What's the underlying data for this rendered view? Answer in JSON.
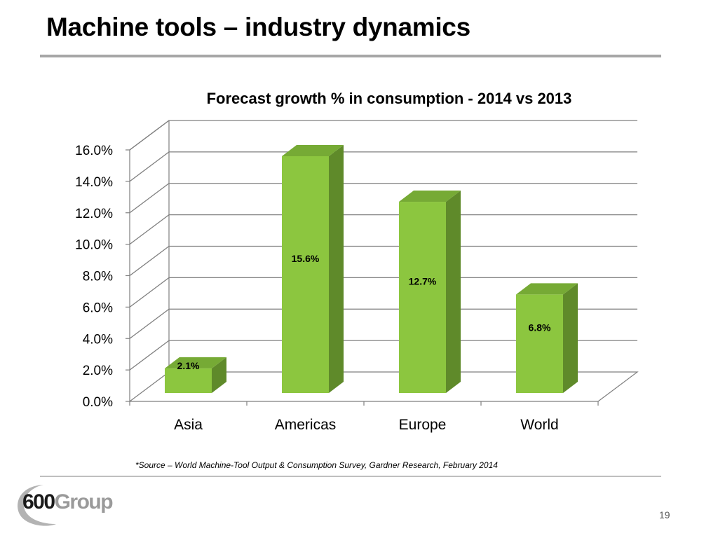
{
  "slide": {
    "title": "Machine tools – industry dynamics",
    "source_note": "*Source – World Machine-Tool Output & Consumption Survey, Gardner Research, February 2014",
    "page_number": "19"
  },
  "logo": {
    "number": "600",
    "word": "Group"
  },
  "colors": {
    "bar_front": "#8cc63f",
    "bar_side": "#5f8a2a",
    "bar_top": "#76aa35",
    "gridline": "#7f7f7f",
    "rule": "#a6a6a6"
  },
  "chart_data": {
    "type": "bar",
    "title": "Forecast growth % in consumption -  2014 vs 2013",
    "categories": [
      "Asia",
      "Americas",
      "Europe",
      "World"
    ],
    "values": [
      2.1,
      15.6,
      12.7,
      6.8
    ],
    "data_labels": [
      "2.1%",
      "15.6%",
      "12.7%",
      "6.8%"
    ],
    "y_ticks": [
      "0.0%",
      "2.0%",
      "4.0%",
      "6.0%",
      "8.0%",
      "10.0%",
      "12.0%",
      "14.0%",
      "16.0%"
    ],
    "ylim": [
      0,
      16
    ],
    "xlabel": "",
    "ylabel": "",
    "grid": true,
    "style": "3d"
  }
}
